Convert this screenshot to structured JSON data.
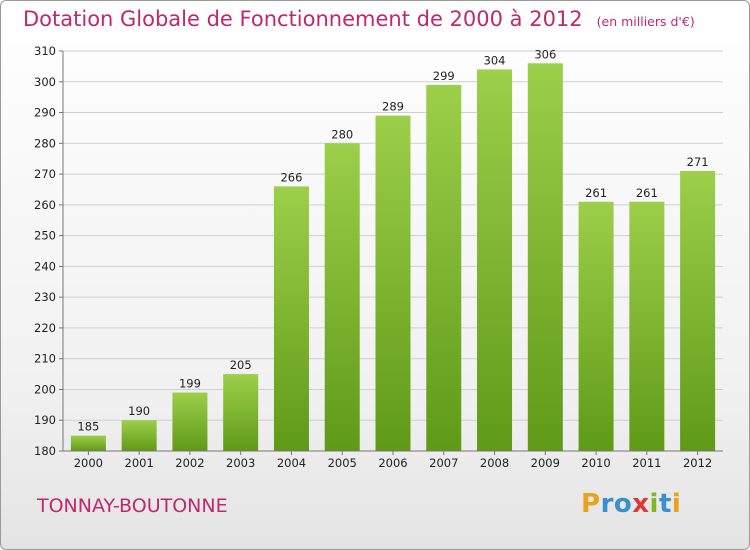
{
  "chart_data": {
    "type": "bar",
    "title": "Dotation Globale de Fonctionnement de 2000 à 2012",
    "subtitle": "(en milliers d'€)",
    "categories": [
      "2000",
      "2001",
      "2002",
      "2003",
      "2004",
      "2005",
      "2006",
      "2007",
      "2008",
      "2009",
      "2010",
      "2011",
      "2012"
    ],
    "values": [
      185,
      190,
      199,
      205,
      266,
      280,
      289,
      299,
      304,
      306,
      261,
      261,
      271
    ],
    "ylim": [
      180,
      310
    ],
    "yticks": [
      180,
      190,
      200,
      210,
      220,
      230,
      240,
      250,
      260,
      270,
      280,
      290,
      300,
      310
    ],
    "xlabel": "",
    "ylabel": "",
    "grid": true,
    "bar_color_top": "#9ccf4a",
    "bar_color_bottom": "#5f9a17"
  },
  "commune": "TONNAY-BOUTONNE",
  "logo": {
    "letters": [
      "P",
      "r",
      "o",
      "x",
      "i",
      "t",
      "i"
    ],
    "colors": [
      "#e8a21b",
      "#3a8fd0",
      "#3a8fd0",
      "#d83a3a",
      "#7bb82a",
      "#3a8fd0",
      "#e8a21b"
    ]
  },
  "colors": {
    "accent": "#c0286e"
  }
}
